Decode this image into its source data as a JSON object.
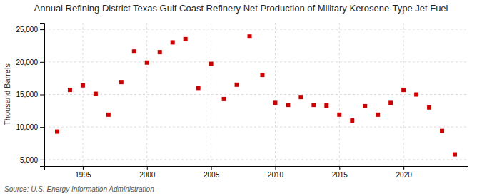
{
  "chart_data": {
    "type": "scatter",
    "title": "Annual Refining District Texas Gulf Coast Refinery Net Production of Military Kerosene-Type Jet Fuel",
    "ylabel": "Thousand Barrels",
    "source": "Source: U.S. Energy Information Administration",
    "x": [
      1993,
      1994,
      1995,
      1996,
      1997,
      1998,
      1999,
      2000,
      2001,
      2002,
      2003,
      2004,
      2005,
      2006,
      2007,
      2008,
      2009,
      2010,
      2011,
      2012,
      2013,
      2014,
      2015,
      2016,
      2017,
      2018,
      2019,
      2020,
      2021,
      2022,
      2023,
      2024
    ],
    "values": [
      9300,
      15700,
      16400,
      15100,
      11900,
      16900,
      21600,
      19900,
      21500,
      23000,
      23500,
      16000,
      19700,
      14300,
      16500,
      23900,
      18000,
      13700,
      13400,
      14600,
      13400,
      13300,
      11900,
      11000,
      13200,
      11900,
      13700,
      15700,
      15000,
      13000,
      9400,
      5800
    ],
    "color": "#cc0000",
    "marker": "square",
    "xlim": [
      1992,
      2025
    ],
    "xticks": [
      1995,
      2000,
      2005,
      2010,
      2015,
      2020
    ],
    "ylim": [
      4000,
      26000
    ],
    "yticks": [
      {
        "value": 5000,
        "label": "5,000"
      },
      {
        "value": 10000,
        "label": "10,000"
      },
      {
        "value": 15000,
        "label": "15,000"
      },
      {
        "value": 20000,
        "label": "20,000"
      },
      {
        "value": 25000,
        "label": "25,000"
      }
    ],
    "grid": true
  }
}
